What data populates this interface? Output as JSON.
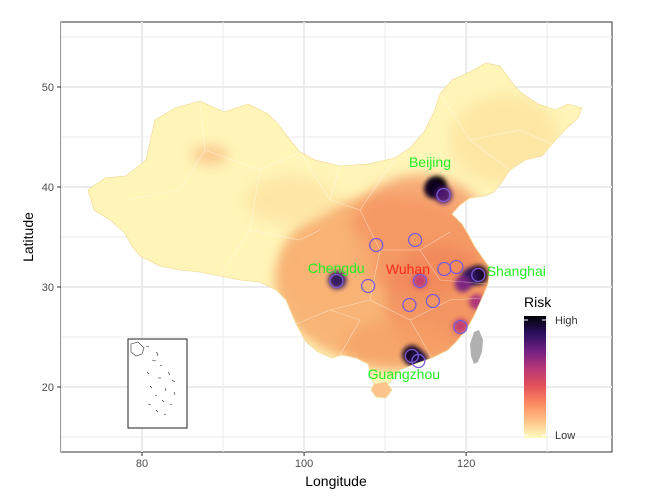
{
  "map": {
    "xlabel": "Longitude",
    "ylabel": "Latitude",
    "xlim": [
      70,
      138
    ],
    "ylim": [
      13.5,
      56.5
    ],
    "x_ticks": [
      80,
      100,
      120
    ],
    "y_ticks": [
      20,
      30,
      40,
      50
    ],
    "grid": true,
    "background_color": "#ffffff",
    "grid_color": "#ebebeb",
    "land_base_color": "#fff5b8",
    "taiwan_color": "#b0b0b0",
    "circle_color": "#7a5bd6",
    "city_label_color": "#22ee22",
    "wuhan_label_color": "#ff2a1a",
    "inset": "South China Sea islands"
  },
  "legend": {
    "title": "Risk",
    "high_label": "High",
    "low_label": "Low",
    "gradient": [
      "#fcfdbf",
      "#fec287",
      "#fc8961",
      "#e3505a",
      "#b73779",
      "#721f81",
      "#2c115f",
      "#000004"
    ]
  },
  "cities": [
    {
      "name": "Beijing",
      "lon": 116.4,
      "lat": 40.0
    },
    {
      "name": "Shanghai",
      "lon": 121.5,
      "lat": 31.2
    },
    {
      "name": "Wuhan",
      "lon": 114.3,
      "lat": 30.6
    },
    {
      "name": "Chengdu",
      "lon": 104.1,
      "lat": 30.7
    },
    {
      "name": "Guangzhou",
      "lon": 113.3,
      "lat": 23.1
    }
  ],
  "circles": [
    {
      "lon": 117.2,
      "lat": 39.2
    },
    {
      "lon": 113.7,
      "lat": 34.7
    },
    {
      "lon": 108.9,
      "lat": 34.2
    },
    {
      "lon": 104.0,
      "lat": 30.6
    },
    {
      "lon": 107.9,
      "lat": 30.1
    },
    {
      "lon": 114.3,
      "lat": 30.6
    },
    {
      "lon": 117.3,
      "lat": 31.8
    },
    {
      "lon": 118.8,
      "lat": 32.0
    },
    {
      "lon": 121.5,
      "lat": 31.2
    },
    {
      "lon": 115.9,
      "lat": 28.6
    },
    {
      "lon": 113.0,
      "lat": 28.2
    },
    {
      "lon": 119.3,
      "lat": 26.0
    },
    {
      "lon": 113.3,
      "lat": 23.1
    },
    {
      "lon": 114.1,
      "lat": 22.6
    }
  ],
  "hotspots": [
    {
      "lon": 116.4,
      "lat": 40.1,
      "level": 1.0
    },
    {
      "lon": 116.0,
      "lat": 39.8,
      "level": 0.95
    },
    {
      "lon": 117.2,
      "lat": 39.2,
      "level": 0.8
    },
    {
      "lon": 121.5,
      "lat": 31.2,
      "level": 0.95
    },
    {
      "lon": 120.5,
      "lat": 31.0,
      "level": 0.85
    },
    {
      "lon": 119.6,
      "lat": 30.3,
      "level": 0.7
    },
    {
      "lon": 113.3,
      "lat": 23.2,
      "level": 0.95
    },
    {
      "lon": 114.1,
      "lat": 22.7,
      "level": 0.9
    },
    {
      "lon": 104.1,
      "lat": 30.7,
      "level": 0.85
    },
    {
      "lon": 114.3,
      "lat": 30.6,
      "level": 0.55
    },
    {
      "lon": 121.3,
      "lat": 28.5,
      "level": 0.6
    },
    {
      "lon": 119.3,
      "lat": 26.1,
      "level": 0.55
    }
  ]
}
